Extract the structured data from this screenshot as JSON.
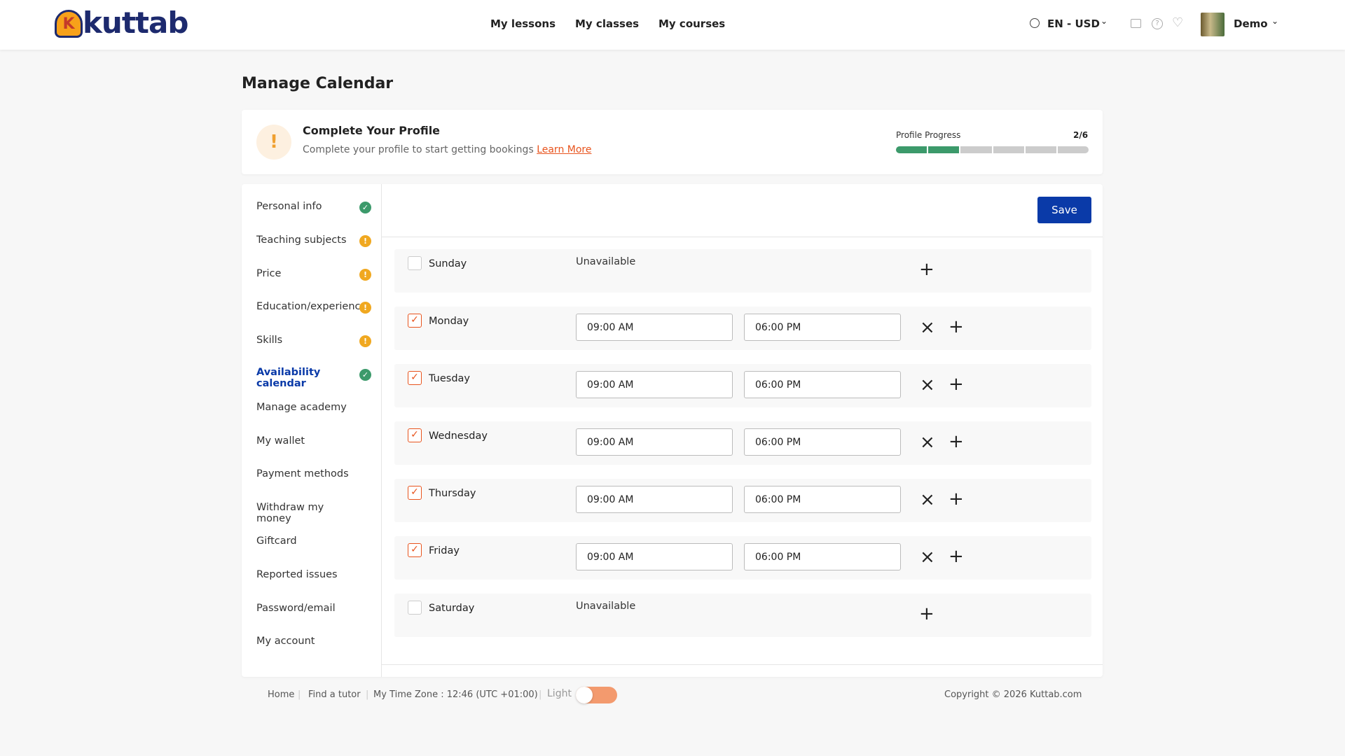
{
  "header": {
    "logo": "kuttab",
    "nav": [
      "My lessons",
      "My classes",
      "My courses"
    ],
    "locale": "EN - USD",
    "user": "Demo"
  },
  "page_title": "Manage Calendar",
  "profile_banner": {
    "title": "Complete Your Profile",
    "text": "Complete your profile to start getting bookings",
    "link": "Learn More",
    "progress_label": "Profile Progress",
    "progress_value": "2/6"
  },
  "sidebar": [
    {
      "label": "Personal info",
      "status": "done"
    },
    {
      "label": "Teaching subjects",
      "status": "pending"
    },
    {
      "label": "Price",
      "status": "pending"
    },
    {
      "label": "Education/experience",
      "status": "pending"
    },
    {
      "label": "Skills",
      "status": "pending"
    },
    {
      "label": "Availability calendar",
      "status": "done",
      "active": true
    },
    {
      "label": "Manage academy"
    },
    {
      "label": "My wallet"
    },
    {
      "label": "Payment methods"
    },
    {
      "label": "Withdraw my money"
    },
    {
      "label": "Giftcard"
    },
    {
      "label": "Reported issues"
    },
    {
      "label": "Password/email"
    },
    {
      "label": "My account"
    }
  ],
  "save": "Save",
  "days": [
    {
      "name": "Sunday",
      "checked": false,
      "status": "Unavailable"
    },
    {
      "name": "Monday",
      "checked": true,
      "start": "09:00 AM",
      "end": "06:00 PM"
    },
    {
      "name": "Tuesday",
      "checked": true,
      "start": "09:00 AM",
      "end": "06:00 PM"
    },
    {
      "name": "Wednesday",
      "checked": true,
      "start": "09:00 AM",
      "end": "06:00 PM"
    },
    {
      "name": "Thursday",
      "checked": true,
      "start": "09:00 AM",
      "end": "06:00 PM"
    },
    {
      "name": "Friday",
      "checked": true,
      "start": "09:00 AM",
      "end": "06:00 PM"
    },
    {
      "name": "Saturday",
      "checked": false,
      "status": "Unavailable"
    }
  ],
  "footer": {
    "links": [
      "Home",
      "Find a tutor",
      "My Time Zone : 12:46 (UTC +01:00)"
    ],
    "theme": "Light",
    "copyright": "Copyright © 2026 Kuttab.com"
  }
}
